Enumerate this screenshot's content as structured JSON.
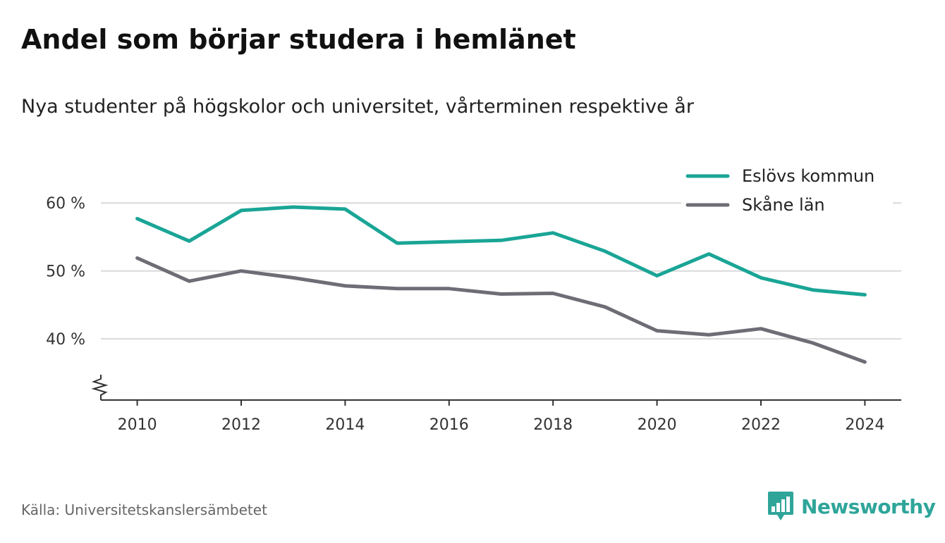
{
  "chart_data": {
    "type": "line",
    "title": "Andel som börjar studera i hemlänet",
    "subtitle": "Nya studenter på högskolor och universitet, vårterminen respektive år",
    "xlabel": "",
    "ylabel": "",
    "x": [
      2010,
      2011,
      2012,
      2013,
      2014,
      2015,
      2016,
      2017,
      2018,
      2019,
      2020,
      2021,
      2022,
      2023,
      2024
    ],
    "x_ticks": [
      2010,
      2012,
      2014,
      2016,
      2018,
      2020,
      2022,
      2024
    ],
    "x_tick_labels": [
      "2010",
      "2012",
      "2014",
      "2016",
      "2018",
      "2020",
      "2022",
      "2024"
    ],
    "y_ticks": [
      40,
      50,
      60
    ],
    "y_tick_labels": [
      "40 %",
      "50 %",
      "60 %"
    ],
    "xlim": [
      2009.3,
      2024.7
    ],
    "ylim": [
      31,
      65
    ],
    "y_axis_break": true,
    "grid": "horizontal",
    "legend_position": "top-right",
    "series": [
      {
        "name": "Eslövs kommun",
        "color": "#1aa596",
        "values": [
          57.7,
          54.4,
          58.9,
          59.4,
          59.1,
          54.1,
          54.3,
          54.5,
          55.6,
          52.9,
          49.3,
          52.5,
          49.0,
          47.2,
          46.5
        ]
      },
      {
        "name": "Skåne län",
        "color": "#6e6d76",
        "values": [
          51.9,
          48.5,
          50.0,
          49.0,
          47.8,
          47.4,
          47.4,
          46.6,
          46.7,
          44.7,
          41.2,
          40.6,
          41.5,
          39.4,
          36.6
        ]
      }
    ]
  },
  "footer": {
    "source": "Källa: Universitetskanslersämbetet",
    "brand": "Newsworthy"
  },
  "colors": {
    "brand": "#2fa59a",
    "grid": "#d9d9d9",
    "axis": "#333333"
  },
  "icons": {
    "brand_icon": "bar-chart-speech-bubble-icon"
  }
}
